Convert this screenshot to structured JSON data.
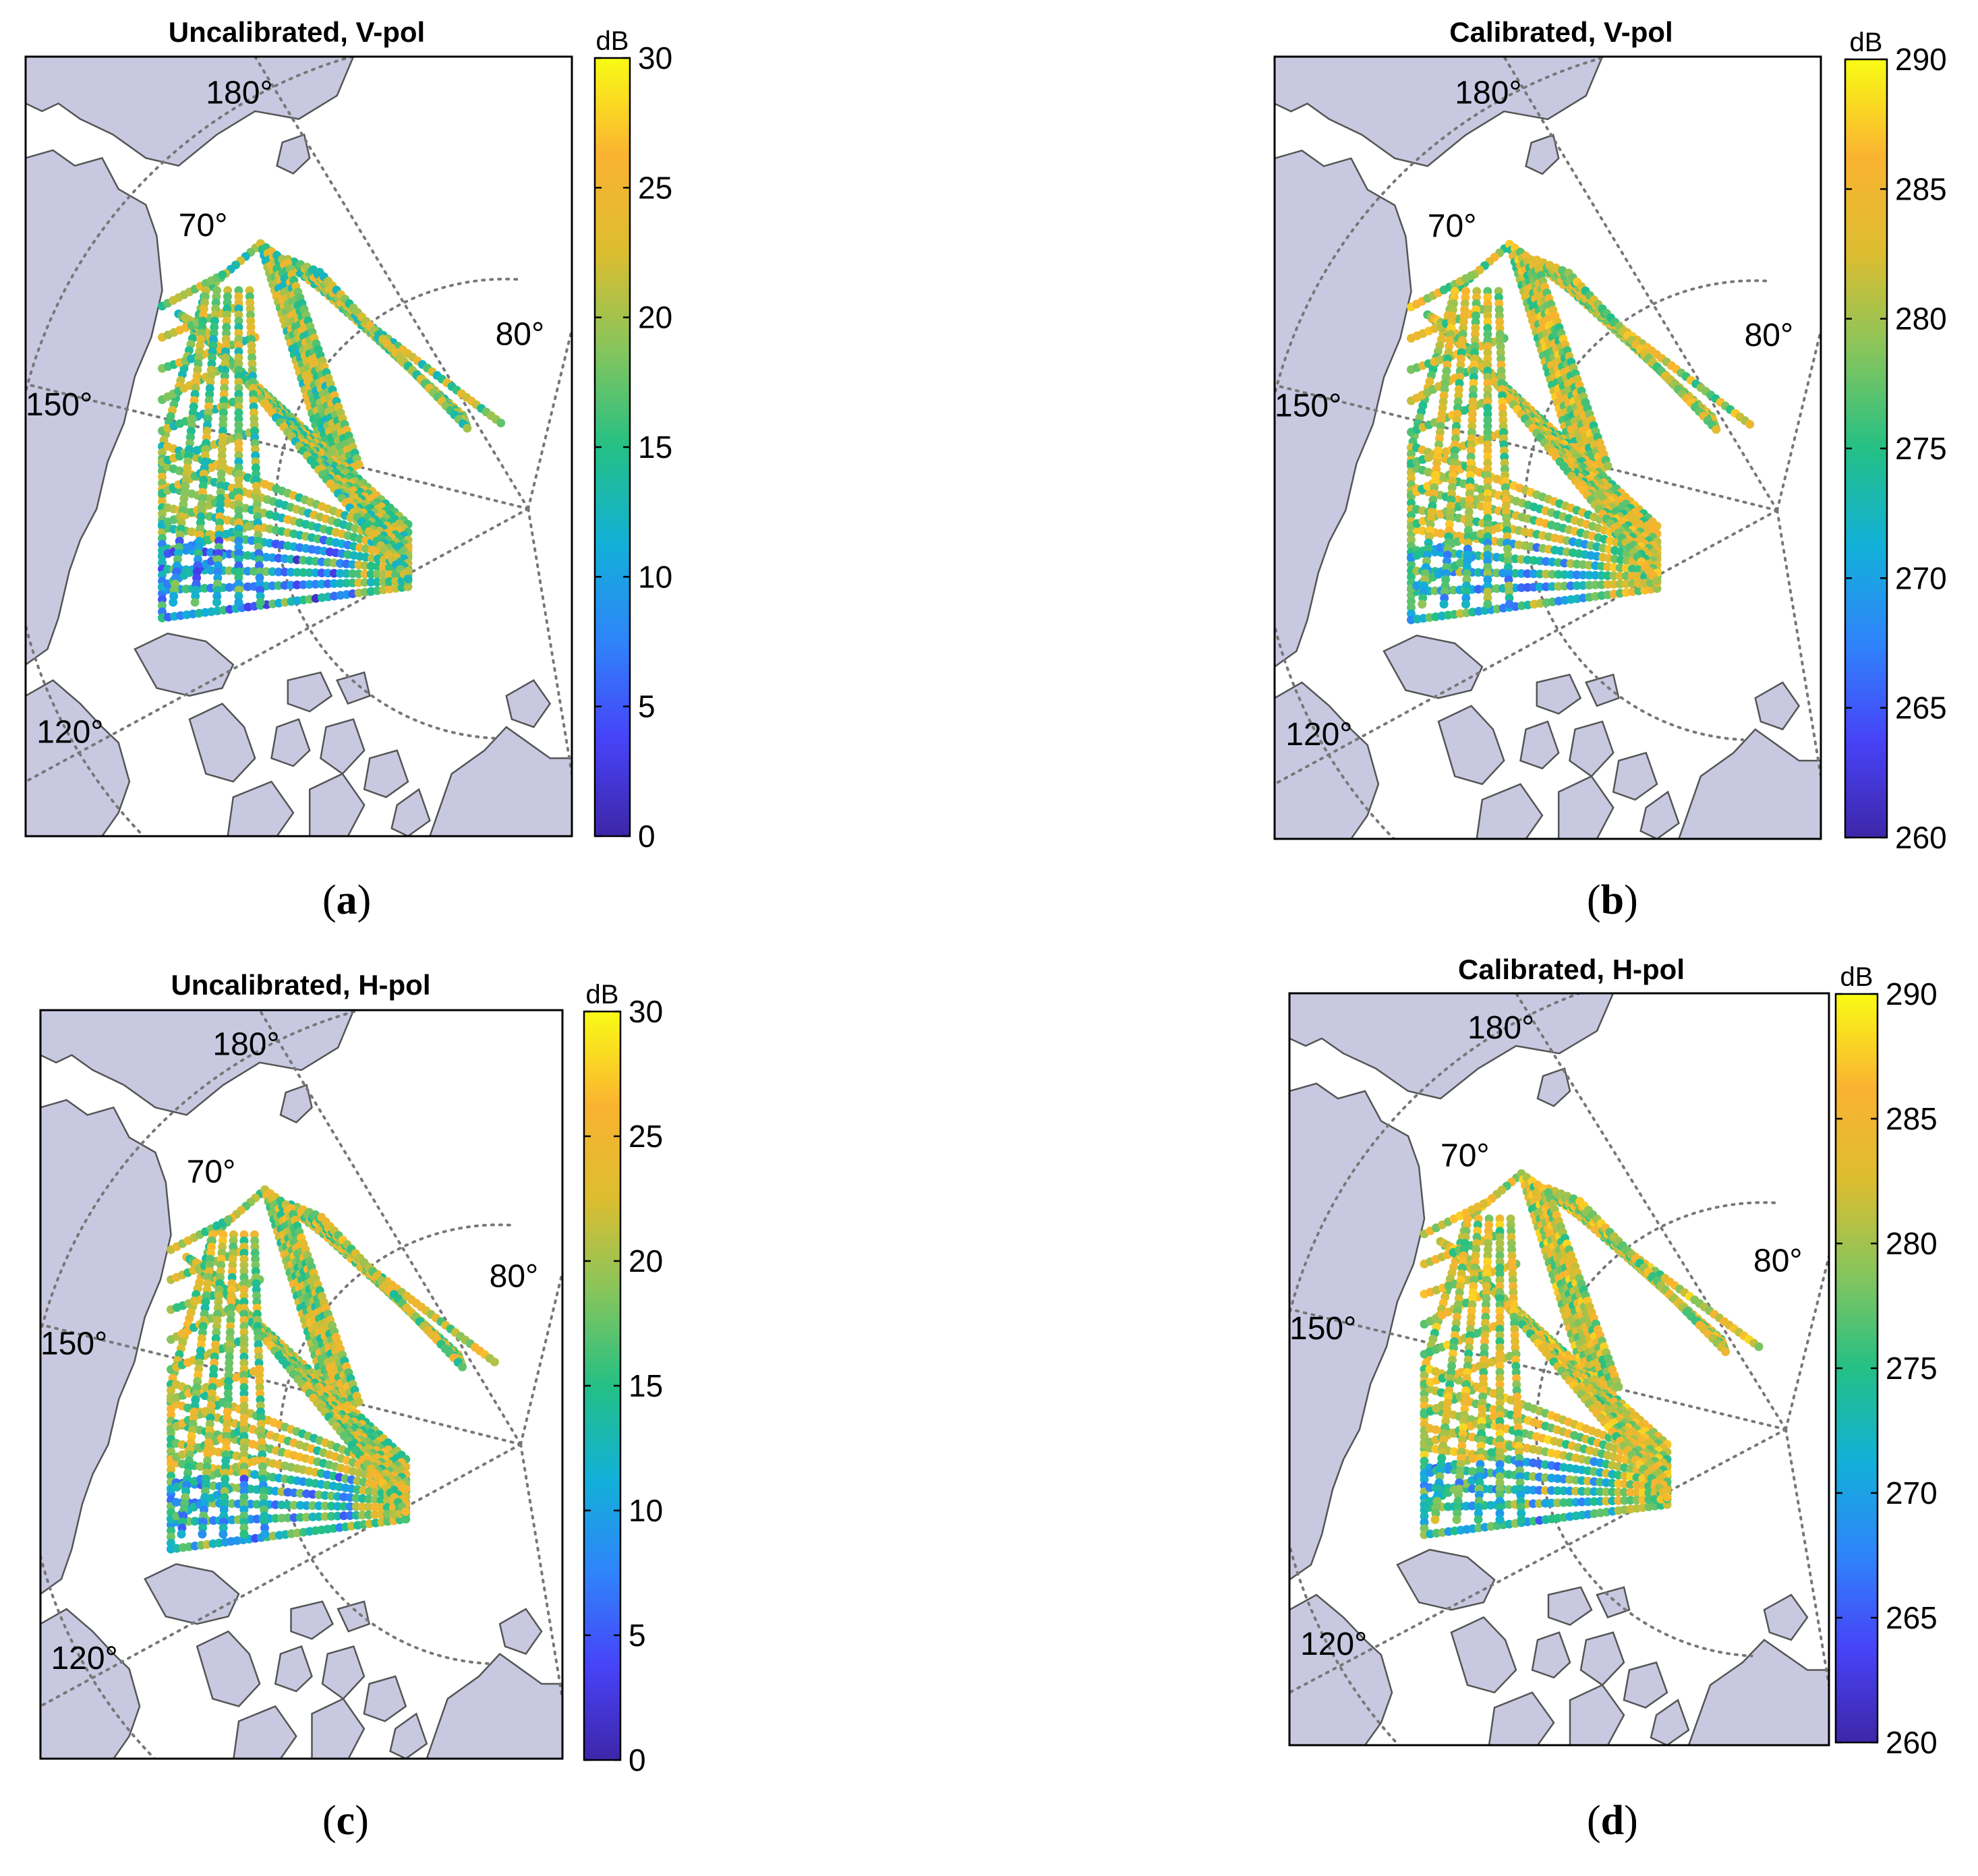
{
  "colors": {
    "land": "#c8c9e1",
    "land_edge": "#555555",
    "grid": "#777777",
    "frame": "#000000",
    "colormap": [
      "#3e26a8",
      "#4743f8",
      "#2f84fa",
      "#12b0d8",
      "#24c085",
      "#86c55c",
      "#dcbd30",
      "#fab331",
      "#f9fb15"
    ]
  },
  "panels": [
    {
      "id": "a",
      "title": "Uncalibrated, V-pol",
      "caption_letter": "a",
      "colorbar": {
        "unit": "dB",
        "min": 0,
        "max": 30,
        "ticks": [
          "0",
          "5",
          "10",
          "15",
          "20",
          "25",
          "30"
        ]
      },
      "grid_labels": {
        "lon_180": "180°",
        "lon_150": "150°",
        "lon_120": "120°",
        "lat_70": "70°",
        "lat_80": "80°"
      },
      "track_mean_level": 0.62
    },
    {
      "id": "b",
      "title": "Calibrated, V-pol",
      "caption_letter": "b",
      "colorbar": {
        "unit": "dB",
        "min": 260,
        "max": 290,
        "ticks": [
          "260",
          "265",
          "270",
          "275",
          "280",
          "285",
          "290"
        ]
      },
      "grid_labels": {
        "lon_180": "180°",
        "lon_150": "150°",
        "lon_120": "120°",
        "lat_70": "70°",
        "lat_80": "80°"
      },
      "track_mean_level": 0.7
    },
    {
      "id": "c",
      "title": "Uncalibrated, H-pol",
      "caption_letter": "c",
      "colorbar": {
        "unit": "dB",
        "min": 0,
        "max": 30,
        "ticks": [
          "0",
          "5",
          "10",
          "15",
          "20",
          "25",
          "30"
        ]
      },
      "grid_labels": {
        "lon_180": "180°",
        "lon_150": "150°",
        "lon_120": "120°",
        "lat_70": "70°",
        "lat_80": "80°"
      },
      "track_mean_level": 0.68
    },
    {
      "id": "d",
      "title": "Calibrated, H-pol",
      "caption_letter": "d",
      "colorbar": {
        "unit": "dB",
        "min": 260,
        "max": 290,
        "ticks": [
          "260",
          "265",
          "270",
          "275",
          "280",
          "285",
          "290"
        ]
      },
      "grid_labels": {
        "lon_180": "180°",
        "lon_150": "150°",
        "lon_120": "120°",
        "lat_70": "70°",
        "lat_80": "80°"
      },
      "track_mean_level": 0.72
    }
  ]
}
